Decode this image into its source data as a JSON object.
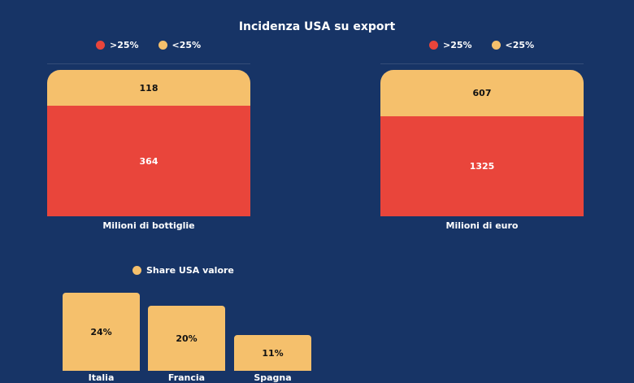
{
  "header": {
    "title": "Incidenza USA su export"
  },
  "colors": {
    "background": "#173466",
    "high": "#e9453b",
    "low": "#f5c06c"
  },
  "legend_stacked": [
    {
      "label": ">25%",
      "color": "#e9453b"
    },
    {
      "label": "<25%",
      "color": "#f5c06c"
    }
  ],
  "legend_share": {
    "label": "Share USA valore",
    "color": "#f5c06c"
  },
  "chart_data": [
    {
      "type": "bar",
      "stacked": true,
      "categories": [
        "Milioni di bottiglie"
      ],
      "series": [
        {
          "name": ">25%",
          "values": [
            364
          ],
          "color": "#e9453b"
        },
        {
          "name": "<25%",
          "values": [
            118
          ],
          "color": "#f5c06c"
        }
      ],
      "labels": {
        "low": "364",
        "high": "118"
      }
    },
    {
      "type": "bar",
      "stacked": true,
      "categories": [
        "Milioni di euro"
      ],
      "series": [
        {
          "name": ">25%",
          "values": [
            1325
          ],
          "color": "#e9453b"
        },
        {
          "name": "<25%",
          "values": [
            607
          ],
          "color": "#f5c06c"
        }
      ],
      "labels": {
        "low": "1325",
        "high": "607"
      }
    },
    {
      "type": "bar",
      "categories": [
        "Italia",
        "Francia",
        "Spagna"
      ],
      "series": [
        {
          "name": "Share USA valore",
          "values": [
            24,
            20,
            11
          ],
          "color": "#f5c06c"
        }
      ],
      "value_labels": [
        "24%",
        "20%",
        "11%"
      ],
      "legend": "top"
    }
  ]
}
